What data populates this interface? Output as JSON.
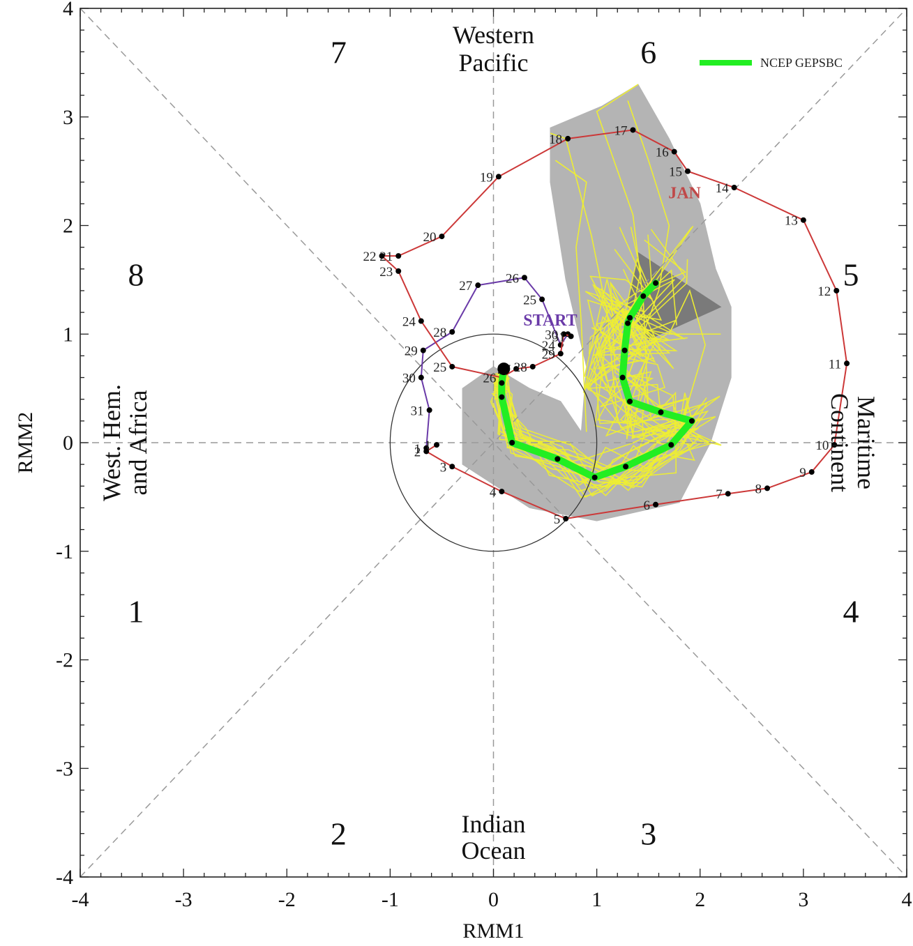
{
  "chart_data": {
    "type": "line",
    "title": "",
    "xlabel": "RMM1",
    "ylabel": "RMM2",
    "xlim": [
      -4,
      4
    ],
    "ylim": [
      -4,
      4
    ],
    "xticks": [
      "-4",
      "-3",
      "-2",
      "-1",
      "0",
      "1",
      "2",
      "3",
      "4"
    ],
    "yticks": [
      "-4",
      "-3",
      "-2",
      "-1",
      "0",
      "1",
      "2",
      "3",
      "4"
    ],
    "grid": false,
    "legend": "top-right",
    "legend_entries": [
      {
        "name": "NCEP GEPSBC",
        "color": "#22ee22"
      }
    ],
    "phase_numbers": [
      {
        "label": "1",
        "x": -3.46,
        "y": -1.55
      },
      {
        "label": "2",
        "x": -1.5,
        "y": -3.6
      },
      {
        "label": "3",
        "x": 1.5,
        "y": -3.6
      },
      {
        "label": "4",
        "x": 3.46,
        "y": -1.55
      },
      {
        "label": "5",
        "x": 3.46,
        "y": 1.55
      },
      {
        "label": "6",
        "x": 1.5,
        "y": 3.6
      },
      {
        "label": "7",
        "x": -1.5,
        "y": 3.6
      },
      {
        "label": "8",
        "x": -3.46,
        "y": 1.55
      }
    ],
    "region_labels": {
      "top": [
        "Western",
        "Pacific"
      ],
      "bottom": [
        "Indian",
        "Ocean"
      ],
      "left": [
        "West. Hem.",
        "and Africa"
      ],
      "right": [
        "Maritime",
        "Continent"
      ]
    },
    "annotations": [
      {
        "text": "START",
        "x": 0.55,
        "y": 1.08,
        "color": "#6a3aa8"
      },
      {
        "text": "JAN",
        "x": 1.85,
        "y": 2.25,
        "color": "#c04848"
      }
    ],
    "series": [
      {
        "color": "#6a3aa8",
        "points": [
          {
            "label": "",
            "x": 0.72,
            "y": 1.0
          },
          {
            "label": "24",
            "x": 0.65,
            "y": 0.9
          },
          {
            "label": "25",
            "x": 0.47,
            "y": 1.32
          },
          {
            "label": "26",
            "x": 0.3,
            "y": 1.52
          },
          {
            "label": "27",
            "x": -0.15,
            "y": 1.45
          },
          {
            "label": "28",
            "x": -0.4,
            "y": 1.02
          },
          {
            "label": "29",
            "x": -0.68,
            "y": 0.85
          },
          {
            "label": "30",
            "x": -0.7,
            "y": 0.6
          },
          {
            "label": "31",
            "x": -0.62,
            "y": 0.3
          },
          {
            "label": "1",
            "x": -0.65,
            "y": -0.05
          }
        ]
      },
      {
        "color": "#cc3838",
        "points": [
          {
            "label": "1",
            "x": -0.55,
            "y": -0.02
          },
          {
            "label": "2",
            "x": -0.65,
            "y": -0.08
          },
          {
            "label": "3",
            "x": -0.4,
            "y": -0.22
          },
          {
            "label": "4",
            "x": 0.08,
            "y": -0.45
          },
          {
            "label": "5",
            "x": 0.7,
            "y": -0.7
          },
          {
            "label": "6",
            "x": 1.57,
            "y": -0.57
          },
          {
            "label": "7",
            "x": 2.27,
            "y": -0.47
          },
          {
            "label": "8",
            "x": 2.65,
            "y": -0.42
          },
          {
            "label": "9",
            "x": 3.08,
            "y": -0.27
          },
          {
            "label": "10",
            "x": 3.3,
            "y": -0.02
          },
          {
            "label": "11",
            "x": 3.42,
            "y": 0.73
          },
          {
            "label": "12",
            "x": 3.32,
            "y": 1.4
          },
          {
            "label": "13",
            "x": 3.0,
            "y": 2.05
          },
          {
            "label": "14",
            "x": 2.33,
            "y": 2.35
          },
          {
            "label": "15",
            "x": 1.88,
            "y": 2.5
          },
          {
            "label": "16",
            "x": 1.75,
            "y": 2.68
          },
          {
            "label": "17",
            "x": 1.35,
            "y": 2.88
          },
          {
            "label": "18",
            "x": 0.72,
            "y": 2.8
          },
          {
            "label": "19",
            "x": 0.05,
            "y": 2.45
          },
          {
            "label": "20",
            "x": -0.5,
            "y": 1.9
          },
          {
            "label": "21",
            "x": -0.92,
            "y": 1.72
          },
          {
            "label": "22",
            "x": -1.08,
            "y": 1.72
          },
          {
            "label": "23",
            "x": -0.92,
            "y": 1.58
          },
          {
            "label": "24",
            "x": -0.7,
            "y": 1.12
          },
          {
            "label": "25",
            "x": -0.4,
            "y": 0.7
          },
          {
            "label": "26",
            "x": 0.08,
            "y": 0.6
          },
          {
            "label": "27",
            "x": 0.22,
            "y": 0.68
          },
          {
            "label": "28",
            "x": 0.38,
            "y": 0.7
          },
          {
            "label": "29",
            "x": 0.65,
            "y": 0.82
          },
          {
            "label": "30",
            "x": 0.68,
            "y": 1.0
          },
          {
            "label": "31",
            "x": 0.75,
            "y": 0.98
          }
        ]
      },
      {
        "name": "NCEP GEPSBC",
        "color": "#22ee22",
        "points": [
          {
            "label": "",
            "x": 0.1,
            "y": 0.68
          },
          {
            "label": "",
            "x": 0.08,
            "y": 0.55
          },
          {
            "label": "",
            "x": 0.08,
            "y": 0.42
          },
          {
            "label": "",
            "x": 0.18,
            "y": 0.0
          },
          {
            "label": "",
            "x": 0.62,
            "y": -0.15
          },
          {
            "label": "",
            "x": 0.98,
            "y": -0.32
          },
          {
            "label": "",
            "x": 1.28,
            "y": -0.22
          },
          {
            "label": "",
            "x": 1.72,
            "y": -0.02
          },
          {
            "label": "",
            "x": 1.92,
            "y": 0.2
          },
          {
            "label": "",
            "x": 1.62,
            "y": 0.28
          },
          {
            "label": "",
            "x": 1.32,
            "y": 0.38
          },
          {
            "label": "",
            "x": 1.25,
            "y": 0.6
          },
          {
            "label": "",
            "x": 1.27,
            "y": 0.85
          },
          {
            "label": "",
            "x": 1.3,
            "y": 1.1
          },
          {
            "label": "",
            "x": 1.32,
            "y": 1.15
          },
          {
            "label": "",
            "x": 1.45,
            "y": 1.35
          },
          {
            "label": "",
            "x": 1.57,
            "y": 1.47
          }
        ]
      }
    ],
    "shaded_regions": [
      {
        "fill": "#b4b4b4",
        "points": [
          [
            0.55,
            2.9
          ],
          [
            1.05,
            3.1
          ],
          [
            1.4,
            3.3
          ],
          [
            1.7,
            2.8
          ],
          [
            2.0,
            2.2
          ],
          [
            2.15,
            1.6
          ],
          [
            2.3,
            1.25
          ],
          [
            2.3,
            0.6
          ],
          [
            2.1,
            0.0
          ],
          [
            1.8,
            -0.55
          ],
          [
            1.0,
            -0.72
          ],
          [
            0.35,
            -0.6
          ],
          [
            -0.3,
            -0.2
          ],
          [
            -0.3,
            0.5
          ],
          [
            0.0,
            0.7
          ],
          [
            0.35,
            0.5
          ],
          [
            0.65,
            0.38
          ],
          [
            0.85,
            0.1
          ],
          [
            0.9,
            0.7
          ],
          [
            0.7,
            1.5
          ],
          [
            0.55,
            2.4
          ]
        ]
      },
      {
        "fill": "#7a7a7a",
        "points": [
          [
            1.4,
            1.75
          ],
          [
            2.2,
            1.25
          ],
          [
            1.5,
            0.95
          ],
          [
            1.3,
            1.25
          ]
        ]
      }
    ],
    "amplitude_circle_radius": 1
  }
}
